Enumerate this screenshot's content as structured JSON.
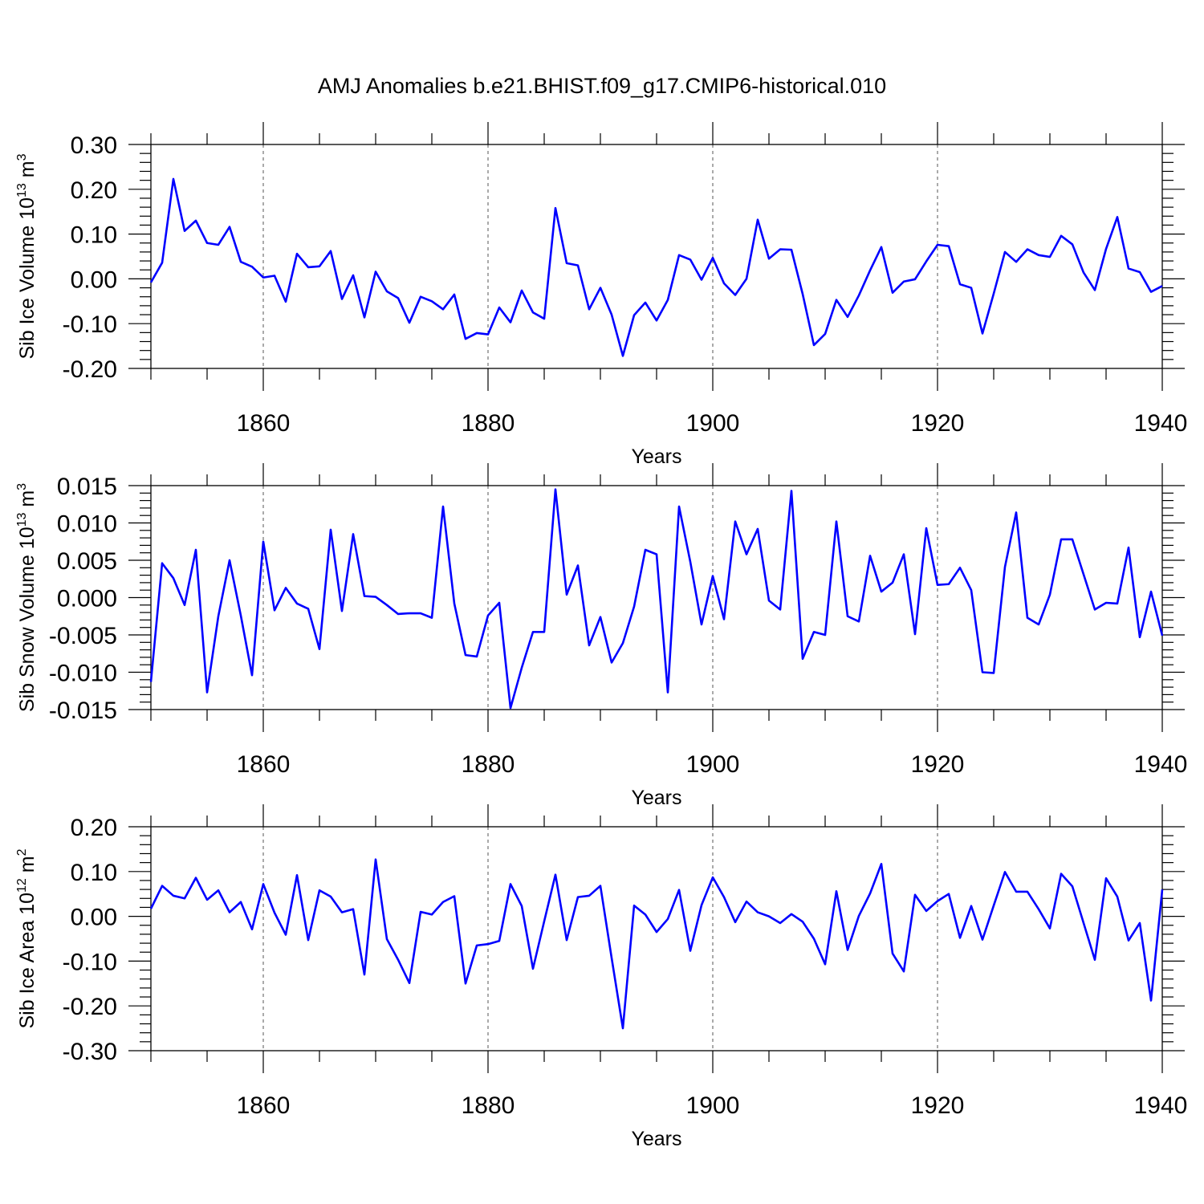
{
  "title": "AMJ Anomalies b.e21.BHIST.f09_g17.CMIP6-historical.010",
  "colors": {
    "series": "#0000ff",
    "axes": "#000000",
    "grid": "#555555"
  },
  "chart_data": [
    {
      "type": "line",
      "name": "sib-ice-volume",
      "ylabel": {
        "text": "Sib Ice Volume 10",
        "exp": "13",
        "unit": " m",
        "unit_exp": "3"
      },
      "xlabel": "Years",
      "xlim": [
        1850,
        1940
      ],
      "ylim": [
        -0.2,
        0.3
      ],
      "yticks": [
        -0.2,
        -0.1,
        0.0,
        0.1,
        0.2,
        0.3
      ],
      "ytick_labels": [
        "-0.20",
        "-0.10",
        "0.00",
        "0.10",
        "0.20",
        "0.30"
      ],
      "xticks": [
        1860,
        1880,
        1900,
        1920,
        1940
      ],
      "xtick_labels": [
        "1860",
        "1880",
        "1900",
        "1920",
        "1940"
      ],
      "grid_x": [
        1860,
        1880,
        1900,
        1920
      ],
      "x_start": 1850,
      "values": [
        -0.008,
        0.036,
        0.223,
        0.107,
        0.13,
        0.08,
        0.076,
        0.116,
        0.038,
        0.027,
        0.003,
        0.007,
        -0.051,
        0.056,
        0.026,
        0.028,
        0.062,
        -0.045,
        0.008,
        -0.086,
        0.016,
        -0.028,
        -0.043,
        -0.098,
        -0.04,
        -0.05,
        -0.068,
        -0.035,
        -0.134,
        -0.121,
        -0.124,
        -0.064,
        -0.097,
        -0.026,
        -0.075,
        -0.089,
        0.158,
        0.035,
        0.03,
        -0.068,
        -0.02,
        -0.08,
        -0.172,
        -0.081,
        -0.053,
        -0.093,
        -0.047,
        0.053,
        0.043,
        -0.002,
        0.047,
        -0.01,
        -0.036,
        0.0,
        0.132,
        0.045,
        0.066,
        0.065,
        -0.034,
        -0.148,
        -0.123,
        -0.047,
        -0.085,
        -0.037,
        0.019,
        0.071,
        -0.031,
        -0.006,
        -0.001,
        0.039,
        0.076,
        0.073,
        -0.012,
        -0.02,
        -0.122,
        -0.033,
        0.06,
        0.038,
        0.066,
        0.053,
        0.049,
        0.096,
        0.077,
        0.014,
        -0.025,
        0.067,
        0.138,
        0.023,
        0.015,
        -0.029,
        -0.016
      ]
    },
    {
      "type": "line",
      "name": "sib-snow-volume",
      "ylabel": {
        "text": "Sib Snow Volume 10",
        "exp": "13",
        "unit": " m",
        "unit_exp": "3"
      },
      "xlabel": "Years",
      "xlim": [
        1850,
        1940
      ],
      "ylim": [
        -0.015,
        0.015
      ],
      "yticks": [
        -0.015,
        -0.01,
        -0.005,
        0.0,
        0.005,
        0.01,
        0.015
      ],
      "ytick_labels": [
        "-0.015",
        "-0.010",
        "-0.005",
        "0.000",
        "0.005",
        "0.010",
        "0.015"
      ],
      "xticks": [
        1860,
        1880,
        1900,
        1920,
        1940
      ],
      "xtick_labels": [
        "1860",
        "1880",
        "1900",
        "1920",
        "1940"
      ],
      "grid_x": [
        1860,
        1880,
        1900,
        1920
      ],
      "x_start": 1850,
      "values": [
        -0.0113,
        0.0046,
        0.0026,
        -0.001,
        0.0064,
        -0.0127,
        -0.0025,
        0.005,
        -0.0024,
        -0.0104,
        0.0075,
        -0.0017,
        0.0013,
        -0.0008,
        -0.0015,
        -0.0069,
        0.0091,
        -0.0018,
        0.0085,
        0.0002,
        0.0001,
        -0.001,
        -0.0022,
        -0.0021,
        -0.0021,
        -0.0027,
        0.0122,
        -0.0008,
        -0.0077,
        -0.0079,
        -0.0024,
        -0.0007,
        -0.0148,
        -0.0094,
        -0.0046,
        -0.0046,
        0.0145,
        0.0004,
        0.0043,
        -0.0064,
        -0.0026,
        -0.0087,
        -0.0061,
        -0.0012,
        0.0064,
        0.0058,
        -0.0127,
        0.0122,
        0.0048,
        -0.0036,
        0.0029,
        -0.0029,
        0.0102,
        0.0058,
        0.0092,
        -0.0004,
        -0.0016,
        0.0143,
        -0.0082,
        -0.0046,
        -0.005,
        0.0102,
        -0.0025,
        -0.0032,
        0.0056,
        0.0008,
        0.002,
        0.0058,
        -0.0049,
        0.0093,
        0.0017,
        0.0018,
        0.004,
        0.001,
        -0.01,
        -0.0101,
        0.0041,
        0.0114,
        -0.0027,
        -0.0036,
        0.0004,
        0.0078,
        0.0078,
        0.0031,
        -0.0016,
        -0.0007,
        -0.0008,
        0.0067,
        -0.0053,
        0.0008,
        -0.0051
      ]
    },
    {
      "type": "line",
      "name": "sib-ice-area",
      "ylabel": {
        "text": "Sib Ice Area 10",
        "exp": "12",
        "unit": " m",
        "unit_exp": "2"
      },
      "xlabel": "Years",
      "xlim": [
        1850,
        1940
      ],
      "ylim": [
        -0.3,
        0.2
      ],
      "yticks": [
        -0.3,
        -0.2,
        -0.1,
        0.0,
        0.1,
        0.2
      ],
      "ytick_labels": [
        "-0.30",
        "-0.20",
        "-0.10",
        "0.00",
        "0.10",
        "0.20"
      ],
      "xticks": [
        1860,
        1880,
        1900,
        1920,
        1940
      ],
      "xtick_labels": [
        "1860",
        "1880",
        "1900",
        "1920",
        "1940"
      ],
      "grid_x": [
        1860,
        1880,
        1900,
        1920
      ],
      "x_start": 1850,
      "values": [
        0.017,
        0.068,
        0.046,
        0.04,
        0.086,
        0.037,
        0.058,
        0.009,
        0.032,
        -0.029,
        0.072,
        0.008,
        -0.041,
        0.092,
        -0.053,
        0.058,
        0.044,
        0.009,
        0.016,
        -0.13,
        0.127,
        -0.051,
        -0.097,
        -0.149,
        0.01,
        0.004,
        0.032,
        0.045,
        -0.15,
        -0.065,
        -0.062,
        -0.055,
        0.072,
        0.023,
        -0.117,
        -0.011,
        0.093,
        -0.053,
        0.043,
        0.046,
        0.068,
        -0.093,
        -0.25,
        0.024,
        0.004,
        -0.035,
        -0.006,
        0.059,
        -0.077,
        0.025,
        0.087,
        0.043,
        -0.013,
        0.033,
        0.009,
        0.0,
        -0.015,
        0.005,
        -0.012,
        -0.05,
        -0.107,
        0.056,
        -0.075,
        0.001,
        0.051,
        0.117,
        -0.083,
        -0.123,
        0.048,
        0.012,
        0.034,
        0.05,
        -0.048,
        0.023,
        -0.052,
        0.024,
        0.099,
        0.055,
        0.055,
        0.016,
        -0.027,
        0.095,
        0.067,
        -0.015,
        -0.097,
        0.085,
        0.044,
        -0.054,
        -0.015,
        -0.188,
        0.06
      ]
    }
  ]
}
